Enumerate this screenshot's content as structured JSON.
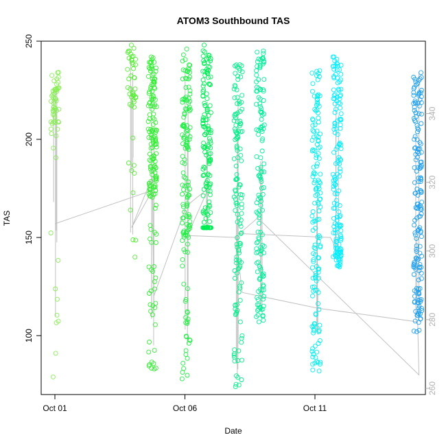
{
  "chart_data": {
    "type": "scatter",
    "title": "ATOM3 Southbound TAS",
    "xlabel": "Date",
    "ylabel": "TAS",
    "x_ticks": [
      {
        "day": 1,
        "label": "Oct 01"
      },
      {
        "day": 6,
        "label": "Oct 06"
      },
      {
        "day": 11,
        "label": "Oct 11"
      }
    ],
    "ylim": [
      70,
      250
    ],
    "y_ticks": [
      100,
      150,
      200,
      250
    ],
    "y2lim": [
      258.2,
      361.1
    ],
    "y2_ticks": [
      260,
      280,
      300,
      320,
      340
    ],
    "grid": false,
    "legend": "none",
    "colors": {
      "points_early": "#7cf541",
      "points_mid": "#00ff66",
      "points_late": "#00ffff",
      "points_last": "#1fa0ff",
      "line": "#c0c0c0",
      "right_axis": "#b0b0b0"
    },
    "clusters": [
      {
        "day": 1.0,
        "color": "#88ee55",
        "count": 60,
        "dense": [
          205,
          235
        ],
        "min": 79,
        "max": 234
      },
      {
        "day": 3.95,
        "color": "#55ee33",
        "count": 45,
        "dense": [
          215,
          248
        ],
        "min": 140,
        "max": 248
      },
      {
        "day": 4.75,
        "color": "#33ee33",
        "count": 170,
        "dense": [
          170,
          242
        ],
        "min": 83,
        "max": 242
      },
      {
        "day": 6.05,
        "color": "#22ee44",
        "count": 150,
        "dense": [
          150,
          246
        ],
        "min": 78,
        "max": 246
      },
      {
        "day": 6.85,
        "color": "#00ee55",
        "count": 160,
        "dense": [
          155,
          248
        ],
        "min": 155,
        "max": 248
      },
      {
        "day": 8.05,
        "color": "#00ee88",
        "count": 140,
        "dense": [
          125,
          238
        ],
        "min": 74,
        "max": 238
      },
      {
        "day": 8.9,
        "color": "#00ee99",
        "count": 140,
        "dense": [
          130,
          245
        ],
        "min": 107,
        "max": 245
      },
      {
        "day": 11.05,
        "color": "#00eeee",
        "count": 150,
        "dense": [
          120,
          235
        ],
        "min": 82,
        "max": 235
      },
      {
        "day": 11.85,
        "color": "#00eeff",
        "count": 150,
        "dense": [
          145,
          242
        ],
        "min": 135,
        "max": 242
      },
      {
        "day": 14.95,
        "color": "#1fa0ee",
        "count": 170,
        "dense": [
          125,
          234
        ],
        "min": 102,
        "max": 234
      }
    ],
    "trajectory": [
      [
        1.0,
        157
      ],
      [
        4.75,
        174
      ],
      [
        3.95,
        155
      ],
      [
        4.75,
        181
      ],
      [
        4.8,
        120
      ],
      [
        6.05,
        166
      ],
      [
        6.9,
        175
      ],
      [
        6.1,
        151
      ],
      [
        8.0,
        150
      ],
      [
        8.05,
        140
      ],
      [
        8.2,
        122
      ],
      [
        11.1,
        114
      ],
      [
        14.95,
        107
      ],
      [
        15.0,
        80
      ],
      [
        8.8,
        160
      ],
      [
        8.1,
        152
      ],
      [
        11.6,
        150
      ],
      [
        11.9,
        142
      ]
    ]
  }
}
